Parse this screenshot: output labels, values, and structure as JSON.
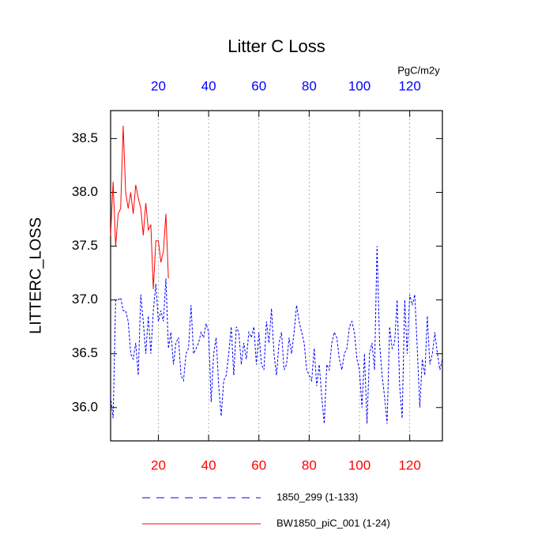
{
  "chart_data": {
    "type": "line",
    "title": "Litter C Loss",
    "ylabel": "LITTERC_LOSS",
    "x2label": "PgC/m2y",
    "xlim": [
      1,
      133
    ],
    "xticks": [
      20,
      40,
      60,
      80,
      100,
      120
    ],
    "xtick_color": "#ff0000",
    "x2tick_color": "#0000ff",
    "ylim": [
      35.69,
      38.76
    ],
    "yticks": [
      {
        "value": 36,
        "label": "36.0"
      },
      36.5,
      {
        "value": 37,
        "label": "37.0"
      },
      37.5,
      {
        "value": 38,
        "label": "38.0"
      },
      38.5
    ],
    "grid": true,
    "x": [
      1,
      2,
      3,
      4,
      5,
      6,
      7,
      8,
      9,
      10,
      11,
      12,
      13,
      14,
      15,
      16,
      17,
      18,
      19,
      20,
      21,
      22,
      23,
      24,
      25,
      26,
      27,
      28,
      29,
      30,
      31,
      32,
      33,
      34,
      35,
      36,
      37,
      38,
      39,
      40,
      41,
      42,
      43,
      44,
      45,
      46,
      47,
      48,
      49,
      50,
      51,
      52,
      53,
      54,
      55,
      56,
      57,
      58,
      59,
      60,
      61,
      62,
      63,
      64,
      65,
      66,
      67,
      68,
      69,
      70,
      71,
      72,
      73,
      74,
      75,
      76,
      77,
      78,
      79,
      80,
      81,
      82,
      83,
      84,
      85,
      86,
      87,
      88,
      89,
      90,
      91,
      92,
      93,
      94,
      95,
      96,
      97,
      98,
      99,
      100,
      101,
      102,
      103,
      104,
      105,
      106,
      107,
      108,
      109,
      110,
      111,
      112,
      113,
      114,
      115,
      116,
      117,
      118,
      119,
      120,
      121,
      122,
      123,
      124,
      125,
      126,
      127,
      128,
      129,
      130,
      131,
      132,
      133
    ],
    "series": [
      {
        "name": "1850_299 (1-133)",
        "color": "#0000ff",
        "style": "dashed",
        "values": [
          36.1,
          35.9,
          37.0,
          37.0,
          37.02,
          36.9,
          36.9,
          36.8,
          36.5,
          36.45,
          36.6,
          36.3,
          37.05,
          36.8,
          36.5,
          36.85,
          36.5,
          36.9,
          37.15,
          36.8,
          36.9,
          36.8,
          37.2,
          36.55,
          36.7,
          36.4,
          36.6,
          36.65,
          36.3,
          36.25,
          36.5,
          36.55,
          36.95,
          36.5,
          36.55,
          36.6,
          36.7,
          36.65,
          36.78,
          36.7,
          36.05,
          36.5,
          36.65,
          36.2,
          35.92,
          36.25,
          36.3,
          36.5,
          36.75,
          36.3,
          36.75,
          36.7,
          36.4,
          36.6,
          36.45,
          36.7,
          36.65,
          36.75,
          36.4,
          36.7,
          36.4,
          36.35,
          36.8,
          36.6,
          36.92,
          36.5,
          36.3,
          36.6,
          36.7,
          36.35,
          36.4,
          36.65,
          36.5,
          36.7,
          36.95,
          36.8,
          36.7,
          36.6,
          36.35,
          36.3,
          36.25,
          36.55,
          36.2,
          36.4,
          36.1,
          35.85,
          36.4,
          36.35,
          36.6,
          36.7,
          36.65,
          36.45,
          36.35,
          36.5,
          36.55,
          36.75,
          36.8,
          36.7,
          36.45,
          36.35,
          36.0,
          36.5,
          35.85,
          36.5,
          36.6,
          36.35,
          37.5,
          36.6,
          36.3,
          36.1,
          35.85,
          36.75,
          36.55,
          36.6,
          37.0,
          36.2,
          35.9,
          37.0,
          36.5,
          37.05,
          36.95,
          37.05,
          36.55,
          36.0,
          36.45,
          36.3,
          36.85,
          36.4,
          36.5,
          36.7,
          36.5,
          36.35,
          36.45
        ]
      },
      {
        "name": "BW1850_piC_001 (1-24)",
        "color": "#ff0000",
        "style": "solid",
        "values": [
          37.6,
          38.1,
          37.5,
          37.8,
          37.85,
          38.62,
          38.0,
          37.85,
          38.0,
          37.8,
          38.07,
          37.95,
          37.85,
          37.6,
          37.9,
          37.65,
          37.7,
          37.1,
          37.55,
          37.55,
          37.35,
          37.45,
          37.8,
          37.2,
          null,
          null,
          null,
          null,
          null,
          null,
          null,
          null,
          null,
          null,
          null,
          null,
          null,
          null,
          null,
          null,
          null,
          null,
          null,
          null,
          null,
          null,
          null,
          null,
          null,
          null,
          null,
          null,
          null,
          null,
          null,
          null,
          null,
          null,
          null,
          null,
          null,
          null,
          null,
          null,
          null,
          null,
          null,
          null,
          null,
          null,
          null,
          null,
          null,
          null,
          null,
          null,
          null,
          null,
          null,
          null,
          null,
          null,
          null,
          null,
          null,
          null,
          null,
          null,
          null,
          null,
          null,
          null,
          null,
          null,
          null,
          null,
          null,
          null,
          null,
          null,
          null,
          null,
          null,
          null,
          null,
          null,
          null,
          null,
          null,
          null,
          null,
          null,
          null,
          null,
          null,
          null,
          null,
          null,
          null,
          null,
          null,
          null,
          null,
          null,
          null,
          null,
          null,
          null,
          null,
          null,
          null,
          null,
          null
        ]
      }
    ]
  }
}
